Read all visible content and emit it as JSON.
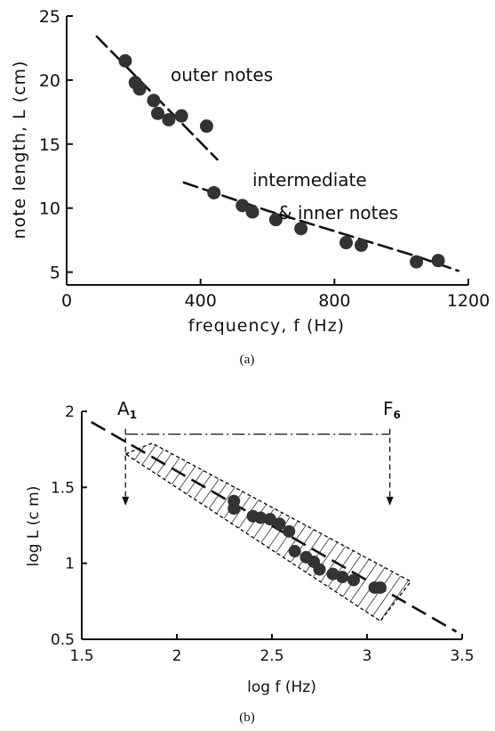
{
  "chart_data": [
    {
      "panel_label": "(a)",
      "type": "scatter",
      "xlabel": "frequency, f (Hz)",
      "ylabel": "note length, L (cm)",
      "xlim": [
        0,
        1200
      ],
      "ylim": [
        4,
        25
      ],
      "x_ticks": [
        0,
        400,
        800,
        1200
      ],
      "y_ticks": [
        5,
        10,
        15,
        20,
        25
      ],
      "grid": false,
      "series": [
        {
          "name": "outer notes",
          "points": [
            [
              175,
              21.5
            ],
            [
              205,
              19.8
            ],
            [
              218,
              19.3
            ],
            [
              260,
              18.4
            ],
            [
              272,
              17.4
            ],
            [
              305,
              16.9
            ],
            [
              343,
              17.2
            ],
            [
              418,
              16.4
            ]
          ],
          "trend": [
            [
              90,
              23.4
            ],
            [
              450,
              13.8
            ]
          ]
        },
        {
          "name": "intermediate & inner notes",
          "points": [
            [
              440,
              11.2
            ],
            [
              525,
              10.2
            ],
            [
              555,
              9.7
            ],
            [
              625,
              9.1
            ],
            [
              700,
              8.4
            ],
            [
              835,
              7.3
            ],
            [
              880,
              7.1
            ],
            [
              1045,
              5.8
            ],
            [
              1110,
              5.9
            ]
          ],
          "trend": [
            [
              350,
              12.0
            ],
            [
              600,
              9.8
            ],
            [
              850,
              7.8
            ],
            [
              1050,
              6.2
            ],
            [
              1170,
              5.1
            ]
          ]
        }
      ]
    },
    {
      "panel_label": "(b)",
      "type": "scatter",
      "xlabel": "log f (Hz)",
      "ylabel": "log L (c m)",
      "xlim": [
        1.5,
        3.5
      ],
      "ylim": [
        0.5,
        2.0
      ],
      "x_ticks": [
        "1.5",
        "2",
        "2.5",
        "3",
        "3.5"
      ],
      "y_ticks": [
        "0.5",
        "1",
        "1.5",
        "2"
      ],
      "grid": false,
      "annotations": [
        {
          "text": "A",
          "subscript": "1",
          "x": 1.73
        },
        {
          "text": "F",
          "subscript": "6",
          "x": 3.12
        }
      ],
      "range_line_y": 1.85,
      "arrow_tip_y": 1.38,
      "trend": [
        [
          1.55,
          1.93
        ],
        [
          3.47,
          0.55
        ]
      ],
      "band_polygon": [
        [
          1.73,
          1.72
        ],
        [
          1.87,
          1.79
        ],
        [
          3.23,
          0.88
        ],
        [
          3.07,
          0.62
        ]
      ],
      "points": [
        [
          2.3,
          1.41
        ],
        [
          2.3,
          1.36
        ],
        [
          2.4,
          1.31
        ],
        [
          2.44,
          1.3
        ],
        [
          2.49,
          1.29
        ],
        [
          2.54,
          1.26
        ],
        [
          2.59,
          1.21
        ],
        [
          2.62,
          1.08
        ],
        [
          2.68,
          1.04
        ],
        [
          2.72,
          1.01
        ],
        [
          2.75,
          0.96
        ],
        [
          2.82,
          0.93
        ],
        [
          2.87,
          0.91
        ],
        [
          2.93,
          0.89
        ],
        [
          3.04,
          0.84
        ],
        [
          3.07,
          0.84
        ]
      ]
    }
  ],
  "labels": {
    "a_xlabel": "frequency, f (Hz)",
    "a_ylabel": "note length, L (cm)",
    "a_outer": "outer notes",
    "a_inner_1": "intermediate",
    "a_inner_2": "& inner notes",
    "a_caption": "(a)",
    "b_xlabel": "log f (Hz)",
    "b_ylabel": "log L (c m)",
    "b_caption": "(b)",
    "b_A": "A",
    "b_A_sub": "1",
    "b_F": "F",
    "b_F_sub": "6"
  },
  "colors": {
    "ink": "#111111",
    "marker": "#333333"
  }
}
